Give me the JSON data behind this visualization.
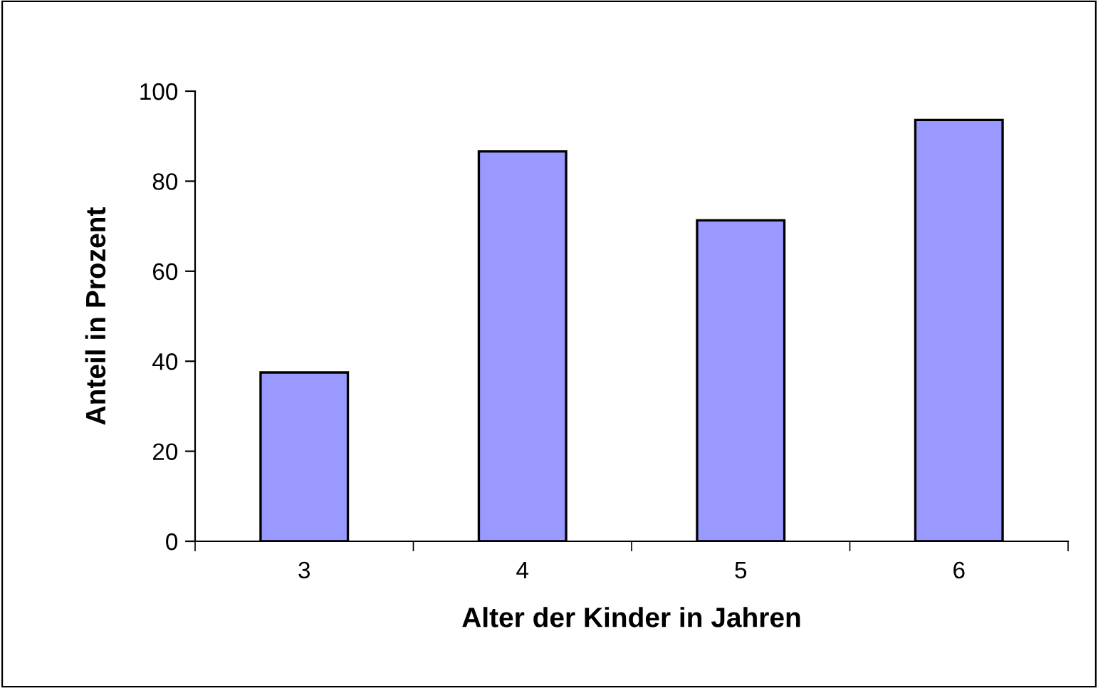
{
  "chart_data": {
    "type": "bar",
    "xlabel": "Alter der Kinder in Jahren",
    "ylabel": "Anteil in Prozent",
    "categories": [
      "3",
      "4",
      "5",
      "6"
    ],
    "values": [
      37.5,
      86.6,
      71.3,
      93.6
    ],
    "color": "#9999ff",
    "ylim": [
      0,
      100
    ],
    "yticks": [
      0,
      20,
      40,
      60,
      80,
      100
    ],
    "grid": false,
    "legend": false
  }
}
